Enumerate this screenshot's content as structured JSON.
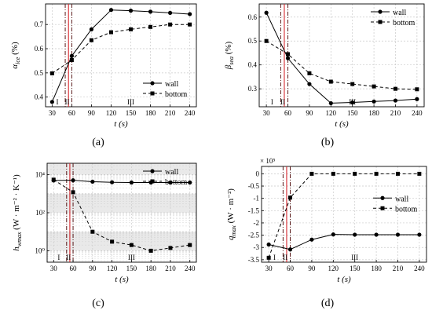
{
  "chart_data": [
    {
      "panel_label": "(a)",
      "type": "line",
      "ylabel_sym": "α",
      "ylabel_sub": "ice",
      "ylabel_unit": " (%)",
      "xlabel": "t (s)",
      "x": [
        30,
        60,
        90,
        120,
        150,
        180,
        210,
        240
      ],
      "xticks": [
        "30",
        "60",
        "90",
        "120",
        "150",
        "180",
        "210",
        "240"
      ],
      "xlim": [
        20,
        250
      ],
      "ylim": [
        0.36,
        0.785
      ],
      "yticks": [
        0.4,
        0.5,
        0.6,
        0.7
      ],
      "ytick_labels": [
        "0.4",
        "0.5",
        "0.6",
        "0.7"
      ],
      "series": [
        {
          "name": "wall",
          "marker": "circle",
          "dash": "solid",
          "x": [
            30,
            60,
            90,
            120,
            150,
            180,
            210,
            240
          ],
          "y": [
            0.38,
            0.57,
            0.68,
            0.76,
            0.757,
            0.753,
            0.748,
            0.743
          ]
        },
        {
          "name": "bottom",
          "marker": "square",
          "dash": "dashed",
          "x": [
            30,
            60,
            90,
            120,
            150,
            180,
            210,
            240
          ],
          "y": [
            0.498,
            0.553,
            0.635,
            0.668,
            0.68,
            0.69,
            0.7,
            0.7
          ]
        }
      ],
      "stage_lines": [
        50,
        55,
        60
      ],
      "stage_labels": [
        {
          "text": "I",
          "x": 38
        },
        {
          "text": "II",
          "x": 53
        },
        {
          "text": "III",
          "x": 150
        }
      ],
      "legend": "bottom-right"
    },
    {
      "panel_label": "(b)",
      "type": "line",
      "ylabel_sym": "β",
      "ylabel_sub": "sea",
      "ylabel_unit": " (%)",
      "xlabel": "t (s)",
      "x": [
        30,
        60,
        90,
        120,
        150,
        180,
        210,
        240
      ],
      "xticks": [
        "30",
        "60",
        "90",
        "120",
        "150",
        "180",
        "210",
        "240"
      ],
      "xlim": [
        20,
        250
      ],
      "ylim": [
        0.225,
        0.655
      ],
      "yticks": [
        0.3,
        0.4,
        0.5,
        0.6
      ],
      "ytick_labels": [
        "0.3",
        "0.4",
        "0.5",
        "0.6"
      ],
      "series": [
        {
          "name": "wall",
          "marker": "circle",
          "dash": "solid",
          "x": [
            30,
            60,
            90,
            120,
            150,
            180,
            210,
            240
          ],
          "y": [
            0.618,
            0.428,
            0.32,
            0.24,
            0.243,
            0.247,
            0.251,
            0.257
          ]
        },
        {
          "name": "bottom",
          "marker": "square",
          "dash": "dashed",
          "x": [
            30,
            60,
            90,
            120,
            150,
            180,
            210,
            240
          ],
          "y": [
            0.5,
            0.445,
            0.365,
            0.33,
            0.32,
            0.31,
            0.3,
            0.298
          ]
        }
      ],
      "stage_lines": [
        50,
        55,
        60
      ],
      "stage_labels": [
        {
          "text": "I",
          "x": 38
        },
        {
          "text": "II",
          "x": 53
        },
        {
          "text": "III",
          "x": 150
        }
      ],
      "legend": "top-right"
    },
    {
      "panel_label": "(c)",
      "type": "line",
      "yscale": "log",
      "ylabel_sym": "h",
      "ylabel_sub": "wmax",
      "ylabel_unit": " (W · m⁻² · K⁻¹)",
      "xlabel": "t (s)",
      "x": [
        30,
        60,
        90,
        120,
        150,
        180,
        210,
        240
      ],
      "xticks": [
        "30",
        "60",
        "90",
        "120",
        "150",
        "180",
        "210",
        "240"
      ],
      "xlim": [
        20,
        250
      ],
      "ylim": [
        0.25,
        40000
      ],
      "yticks": [
        1,
        100,
        10000
      ],
      "ytick_labels": [
        "10⁰",
        "10²",
        "10⁴"
      ],
      "series": [
        {
          "name": "wall",
          "marker": "circle",
          "dash": "solid",
          "x": [
            30,
            60,
            90,
            120,
            150,
            180,
            210,
            240
          ],
          "y": [
            5000,
            5100,
            4300,
            4000,
            3900,
            3900,
            3900,
            3900
          ]
        },
        {
          "name": "bottom",
          "marker": "square",
          "dash": "dashed",
          "x": [
            30,
            60,
            90,
            120,
            150,
            180,
            210,
            240
          ],
          "y": [
            5500,
            1200,
            10,
            3,
            2,
            1,
            1.4,
            2
          ]
        }
      ],
      "stage_lines": [
        50,
        55,
        60
      ],
      "stage_labels": [
        {
          "text": "I",
          "x": 38
        },
        {
          "text": "II",
          "x": 53
        },
        {
          "text": "III",
          "x": 150
        }
      ],
      "legend": "top-right"
    },
    {
      "panel_label": "(d)",
      "type": "line",
      "ylabel_sym": "q",
      "ylabel_sub": "max",
      "ylabel_unit": " (W · m⁻²)",
      "exponent_label": "× 10⁵",
      "xlabel": "t (s)",
      "x": [
        30,
        60,
        90,
        120,
        150,
        180,
        210,
        240
      ],
      "xticks": [
        "30",
        "60",
        "90",
        "120",
        "150",
        "180",
        "210",
        "240"
      ],
      "xlim": [
        20,
        250
      ],
      "ylim": [
        -3.6,
        0.3
      ],
      "yticks": [
        0,
        -0.5,
        -1,
        -1.5,
        -2,
        -2.5,
        -3,
        -3.5
      ],
      "ytick_labels": [
        "0",
        "-0.5",
        "-1",
        "-1.5",
        "-2",
        "-2.5",
        "-3",
        "-3.5"
      ],
      "series": [
        {
          "name": "wall",
          "marker": "circle",
          "dash": "solid",
          "x": [
            30,
            60,
            90,
            120,
            150,
            180,
            210,
            240
          ],
          "y": [
            -2.88,
            -3.08,
            -2.68,
            -2.47,
            -2.48,
            -2.48,
            -2.48,
            -2.48
          ]
        },
        {
          "name": "bottom",
          "marker": "square",
          "dash": "dashed",
          "x": [
            30,
            60,
            90,
            120,
            150,
            180,
            210,
            240
          ],
          "y": [
            -3.42,
            -0.97,
            0.0,
            0.0,
            0.0,
            0.0,
            0.0,
            0.0
          ]
        }
      ],
      "stage_lines": [
        50,
        55,
        60
      ],
      "stage_labels": [
        {
          "text": "I",
          "x": 38
        },
        {
          "text": "II",
          "x": 53
        },
        {
          "text": "III",
          "x": 150
        }
      ],
      "legend": "middle-right"
    }
  ],
  "colors": {
    "stage_line_red": "#d6262c",
    "stage_line_dark": "#5a1a1a",
    "grid": "#c9c9c9",
    "series": "#000000",
    "band_c": "#e9e9e9"
  }
}
